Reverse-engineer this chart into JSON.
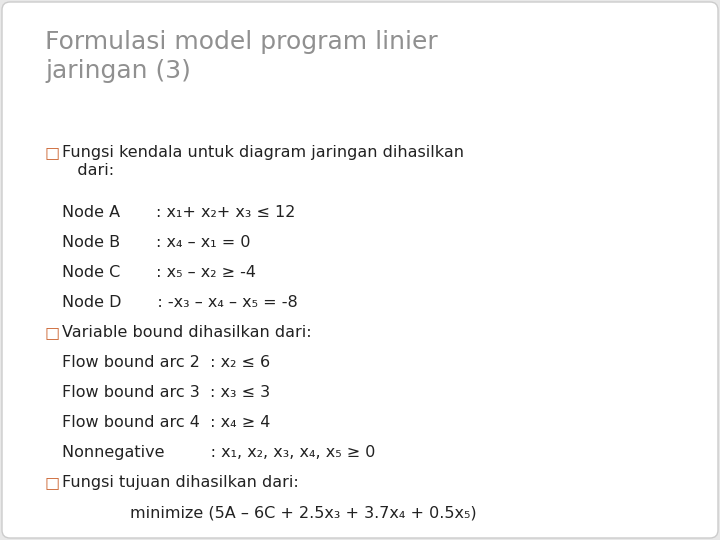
{
  "title": "Formulasi model program linier\njaringan (3)",
  "title_color": "#909090",
  "title_fontsize": 18,
  "background_color": "#e8e8e8",
  "card_color": "#ffffff",
  "text_color": "#222222",
  "body_fontsize": 11.5,
  "bullet_color": "#cc6633",
  "lines": [
    {
      "type": "bullet",
      "text": "Fungsi kendala untuk diagram jaringan dihasilkan\n   dari:"
    },
    {
      "type": "indent",
      "text": "Node A       : x₁+ x₂+ x₃ ≤ 12"
    },
    {
      "type": "indent",
      "text": "Node B       : x₄ – x₁ = 0"
    },
    {
      "type": "indent",
      "text": "Node C       : x₅ – x₂ ≥ -4"
    },
    {
      "type": "indent",
      "text": "Node D       : -x₃ – x₄ – x₅ = -8"
    },
    {
      "type": "bullet",
      "text": "Variable bound dihasilkan dari:"
    },
    {
      "type": "indent",
      "text": "Flow bound arc 2  : x₂ ≤ 6"
    },
    {
      "type": "indent",
      "text": "Flow bound arc 3  : x₃ ≤ 3"
    },
    {
      "type": "indent",
      "text": "Flow bound arc 4  : x₄ ≥ 4"
    },
    {
      "type": "indent",
      "text": "Nonnegative         : x₁, x₂, x₃, x₄, x₅ ≥ 0"
    },
    {
      "type": "bullet",
      "text": "Fungsi tujuan dihasilkan dari:"
    },
    {
      "type": "indent2",
      "text": "minimize (5A – 6C + 2.5x₃ + 3.7x₄ + 0.5x₅)"
    }
  ]
}
